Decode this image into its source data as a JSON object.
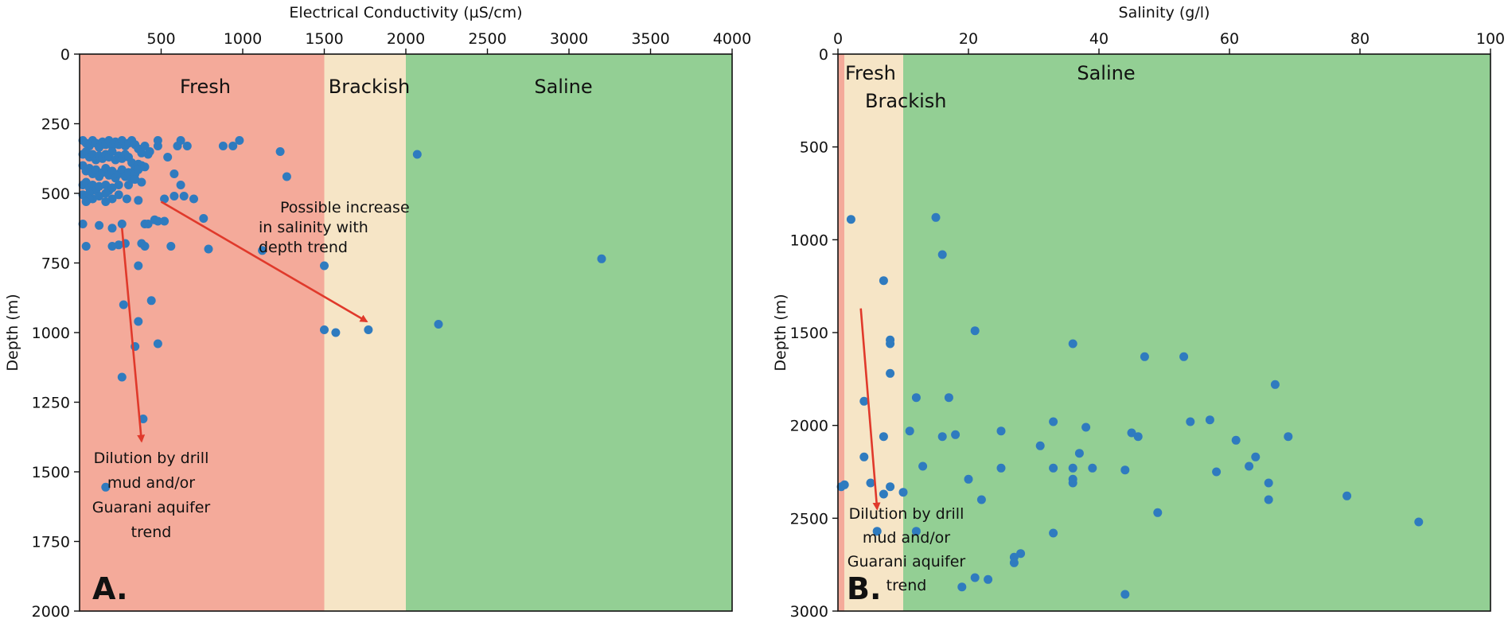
{
  "chart_data": [
    {
      "type": "scatter",
      "panel_label": "A.",
      "xlabel": "Electrical Conductivity (µS/cm)",
      "ylabel": "Depth (m)",
      "xlim": [
        0,
        4000
      ],
      "ylim": [
        0,
        2000
      ],
      "y_inverted": true,
      "x_axis_position": "top",
      "x_ticks": [
        500,
        1000,
        1500,
        2000,
        2500,
        3000,
        3500,
        4000
      ],
      "y_ticks": [
        0,
        250,
        500,
        750,
        1000,
        1250,
        1500,
        1750,
        2000
      ],
      "zones": [
        {
          "label": "Fresh",
          "from": 0,
          "to": 1500,
          "color": "#f4aa9a"
        },
        {
          "label": "Brackish",
          "from": 1500,
          "to": 2000,
          "color": "#f6e5c6"
        },
        {
          "label": "Saline",
          "from": 2000,
          "to": 4000,
          "color": "#93cf94"
        }
      ],
      "point_color": "#2f7bbf",
      "points": [
        [
          20,
          310
        ],
        [
          40,
          320
        ],
        [
          60,
          330
        ],
        [
          80,
          310
        ],
        [
          100,
          320
        ],
        [
          120,
          335
        ],
        [
          140,
          315
        ],
        [
          160,
          325
        ],
        [
          180,
          310
        ],
        [
          200,
          330
        ],
        [
          220,
          315
        ],
        [
          240,
          325
        ],
        [
          260,
          310
        ],
        [
          280,
          330
        ],
        [
          300,
          320
        ],
        [
          320,
          310
        ],
        [
          340,
          325
        ],
        [
          360,
          340
        ],
        [
          380,
          355
        ],
        [
          400,
          330
        ],
        [
          20,
          360
        ],
        [
          40,
          350
        ],
        [
          60,
          370
        ],
        [
          80,
          360
        ],
        [
          100,
          380
        ],
        [
          120,
          365
        ],
        [
          140,
          375
        ],
        [
          160,
          360
        ],
        [
          180,
          370
        ],
        [
          200,
          350
        ],
        [
          220,
          380
        ],
        [
          240,
          365
        ],
        [
          260,
          375
        ],
        [
          280,
          360
        ],
        [
          300,
          370
        ],
        [
          320,
          390
        ],
        [
          340,
          410
        ],
        [
          360,
          395
        ],
        [
          380,
          400
        ],
        [
          420,
          360
        ],
        [
          20,
          400
        ],
        [
          40,
          420
        ],
        [
          60,
          410
        ],
        [
          80,
          430
        ],
        [
          100,
          415
        ],
        [
          120,
          440
        ],
        [
          140,
          425
        ],
        [
          160,
          410
        ],
        [
          180,
          435
        ],
        [
          200,
          420
        ],
        [
          220,
          445
        ],
        [
          240,
          430
        ],
        [
          260,
          415
        ],
        [
          280,
          440
        ],
        [
          300,
          425
        ],
        [
          320,
          450
        ],
        [
          340,
          430
        ],
        [
          360,
          415
        ],
        [
          400,
          405
        ],
        [
          430,
          350
        ],
        [
          20,
          470
        ],
        [
          40,
          460
        ],
        [
          60,
          480
        ],
        [
          80,
          470
        ],
        [
          100,
          490
        ],
        [
          120,
          475
        ],
        [
          160,
          470
        ],
        [
          180,
          490
        ],
        [
          200,
          480
        ],
        [
          240,
          470
        ],
        [
          300,
          470
        ],
        [
          340,
          450
        ],
        [
          380,
          460
        ],
        [
          480,
          330
        ],
        [
          480,
          310
        ],
        [
          540,
          370
        ],
        [
          600,
          330
        ],
        [
          620,
          310
        ],
        [
          580,
          430
        ],
        [
          620,
          470
        ],
        [
          660,
          330
        ],
        [
          880,
          330
        ],
        [
          940,
          330
        ],
        [
          980,
          310
        ],
        [
          1230,
          350
        ],
        [
          1270,
          440
        ],
        [
          20,
          505
        ],
        [
          40,
          515
        ],
        [
          60,
          500
        ],
        [
          80,
          520
        ],
        [
          120,
          510
        ],
        [
          160,
          500
        ],
        [
          200,
          520
        ],
        [
          240,
          505
        ],
        [
          290,
          520
        ],
        [
          360,
          525
        ],
        [
          520,
          520
        ],
        [
          580,
          510
        ],
        [
          640,
          510
        ],
        [
          700,
          520
        ],
        [
          760,
          590
        ],
        [
          460,
          595
        ],
        [
          480,
          600
        ],
        [
          520,
          600
        ],
        [
          160,
          530
        ],
        [
          60,
          520
        ],
        [
          40,
          530
        ],
        [
          20,
          610
        ],
        [
          120,
          615
        ],
        [
          200,
          625
        ],
        [
          260,
          610
        ],
        [
          400,
          610
        ],
        [
          420,
          610
        ],
        [
          380,
          680
        ],
        [
          240,
          685
        ],
        [
          40,
          690
        ],
        [
          200,
          690
        ],
        [
          280,
          680
        ],
        [
          400,
          690
        ],
        [
          560,
          690
        ],
        [
          790,
          700
        ],
        [
          1120,
          705
        ],
        [
          360,
          760
        ],
        [
          440,
          885
        ],
        [
          270,
          900
        ],
        [
          360,
          960
        ],
        [
          340,
          1050
        ],
        [
          480,
          1040
        ],
        [
          260,
          1160
        ],
        [
          390,
          1310
        ],
        [
          1500,
          760
        ],
        [
          1500,
          990
        ],
        [
          1570,
          1000
        ],
        [
          1770,
          990
        ],
        [
          2070,
          360
        ],
        [
          2200,
          970
        ],
        [
          3200,
          735
        ],
        [
          160,
          1555
        ]
      ],
      "annotations": [
        {
          "lines": [
            "Possible increase",
            "in salinity with",
            "depth trend"
          ]
        },
        {
          "lines": [
            "Dilution by drill",
            "mud and/or",
            "Guarani aquifer",
            "trend"
          ]
        }
      ],
      "arrows": [
        {
          "from": [
            500,
            530
          ],
          "to": [
            1760,
            960
          ],
          "color": "#e0392b"
        },
        {
          "from": [
            260,
            625
          ],
          "to": [
            380,
            1390
          ],
          "color": "#e0392b"
        }
      ]
    },
    {
      "type": "scatter",
      "panel_label": "B.",
      "xlabel": "Salinity (g/l)",
      "ylabel": "Depth (m)",
      "xlim": [
        0,
        100
      ],
      "ylim": [
        0,
        3000
      ],
      "y_inverted": true,
      "x_axis_position": "top",
      "x_ticks": [
        0,
        20,
        40,
        60,
        80,
        100
      ],
      "y_ticks": [
        0,
        500,
        1000,
        1500,
        2000,
        2500,
        3000
      ],
      "zones": [
        {
          "label": "Fresh",
          "from": 0,
          "to": 1,
          "color": "#f4aa9a"
        },
        {
          "label": "Brackish",
          "from": 1,
          "to": 10,
          "color": "#f6e5c6"
        },
        {
          "label": "Saline",
          "from": 10,
          "to": 100,
          "color": "#93cf94"
        }
      ],
      "point_color": "#2f7bbf",
      "points": [
        [
          2,
          890
        ],
        [
          15,
          880
        ],
        [
          16,
          1080
        ],
        [
          7,
          1220
        ],
        [
          8,
          1540
        ],
        [
          8,
          1560
        ],
        [
          21,
          1490
        ],
        [
          36,
          1560
        ],
        [
          47,
          1630
        ],
        [
          53,
          1630
        ],
        [
          8,
          1720
        ],
        [
          67,
          1780
        ],
        [
          4,
          1870
        ],
        [
          12,
          1850
        ],
        [
          17,
          1850
        ],
        [
          33,
          1980
        ],
        [
          38,
          2010
        ],
        [
          54,
          1980
        ],
        [
          57,
          1970
        ],
        [
          11,
          2030
        ],
        [
          25,
          2030
        ],
        [
          45,
          2040
        ],
        [
          46,
          2060
        ],
        [
          7,
          2060
        ],
        [
          16,
          2060
        ],
        [
          18,
          2050
        ],
        [
          61,
          2080
        ],
        [
          69,
          2060
        ],
        [
          31,
          2110
        ],
        [
          4,
          2170
        ],
        [
          37,
          2150
        ],
        [
          64,
          2170
        ],
        [
          13,
          2220
        ],
        [
          25,
          2230
        ],
        [
          33,
          2230
        ],
        [
          36,
          2230
        ],
        [
          39,
          2230
        ],
        [
          44,
          2240
        ],
        [
          63,
          2220
        ],
        [
          58,
          2250
        ],
        [
          20,
          2290
        ],
        [
          36,
          2290
        ],
        [
          36,
          2310
        ],
        [
          66,
          2310
        ],
        [
          5,
          2310
        ],
        [
          0.5,
          2330
        ],
        [
          1,
          2320
        ],
        [
          8,
          2330
        ],
        [
          10,
          2360
        ],
        [
          7,
          2370
        ],
        [
          22,
          2400
        ],
        [
          66,
          2400
        ],
        [
          78,
          2380
        ],
        [
          49,
          2470
        ],
        [
          6,
          2570
        ],
        [
          12,
          2570
        ],
        [
          33,
          2580
        ],
        [
          89,
          2520
        ],
        [
          28,
          2690
        ],
        [
          27,
          2710
        ],
        [
          27,
          2740
        ],
        [
          21,
          2820
        ],
        [
          23,
          2830
        ],
        [
          19,
          2870
        ],
        [
          44,
          2910
        ]
      ],
      "annotations": [
        {
          "lines": [
            "Dilution by drill",
            "mud and/or",
            "Guarani aquifer",
            "trend"
          ]
        }
      ],
      "arrows": [
        {
          "from": [
            3.5,
            1370
          ],
          "to": [
            6,
            2450
          ],
          "color": "#e0392b"
        }
      ]
    }
  ]
}
